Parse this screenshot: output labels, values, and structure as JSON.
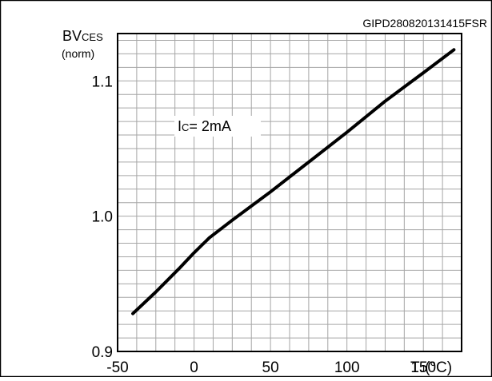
{
  "header": {
    "figure_code": "GIPD280820131415FSR"
  },
  "chart_data": {
    "type": "line",
    "y_axis": {
      "label_main": "BV",
      "label_sub": "CES",
      "label_unit": "(norm)",
      "ylim": [
        0.9,
        1.135
      ],
      "ticks": [
        0.9,
        1.0,
        1.1
      ],
      "tick_labels": [
        "0.9",
        "1.0",
        "1.1"
      ]
    },
    "x_axis": {
      "label_main": "T",
      "label_sub": "J",
      "label_unit": "(°C)",
      "xlim": [
        -50,
        175
      ],
      "ticks": [
        -50,
        0,
        50,
        100,
        150
      ],
      "tick_labels": [
        "-50",
        "0",
        "50",
        "100",
        "150"
      ]
    },
    "grid": true,
    "annotation": {
      "main": "I",
      "sub": "C",
      "rest": "= 2mA"
    },
    "series": [
      {
        "x": [
          -40,
          -25,
          -10,
          0,
          10,
          25,
          50,
          75,
          100,
          125,
          150,
          170
        ],
        "y": [
          0.928,
          0.944,
          0.961,
          0.973,
          0.984,
          0.997,
          1.018,
          1.04,
          1.062,
          1.085,
          1.106,
          1.123
        ]
      }
    ]
  }
}
